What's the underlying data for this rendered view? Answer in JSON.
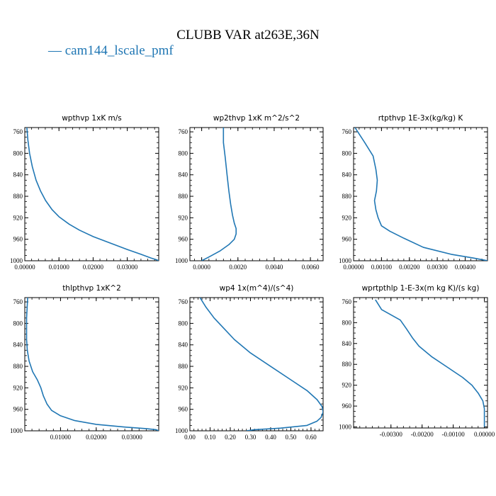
{
  "figure": {
    "title": "CLUBB VAR at263E,36N",
    "legend": "— cam144_lscale_pmf",
    "line_color": "#2077b4"
  },
  "chart_data": [
    {
      "type": "line",
      "title": "wpthvp   1xK m/s",
      "xlim": [
        0,
        0.0392
      ],
      "ylim": [
        1000,
        752
      ],
      "x_ticks": [
        0.0,
        0.01,
        0.02,
        0.03
      ],
      "x_ticklabels": [
        "0.00000",
        "0.01000",
        "0.02000",
        "0.03000"
      ],
      "y_ticks": [
        760,
        800,
        840,
        880,
        920,
        960,
        1000
      ],
      "y_ticklabels": [
        "760",
        "800",
        "840",
        "880",
        "920",
        "960",
        "1000"
      ],
      "series": [
        {
          "x": [
            0.0006,
            0.0009,
            0.0014,
            0.0022,
            0.0033,
            0.0046,
            0.0061,
            0.008,
            0.01,
            0.013,
            0.016,
            0.02,
            0.025,
            0.03,
            0.034,
            0.037,
            0.0385,
            0.0392
          ],
          "y": [
            752,
            775,
            800,
            825,
            850,
            870,
            888,
            905,
            918,
            932,
            943,
            955,
            967,
            979,
            988,
            995,
            998,
            1000
          ]
        }
      ]
    },
    {
      "type": "line",
      "title": "wp2thvp   1xK m^2/s^2",
      "xlim": [
        -0.00065,
        0.0067
      ],
      "ylim": [
        1000,
        752
      ],
      "x_ticks": [
        0.0,
        0.002,
        0.004,
        0.006
      ],
      "x_ticklabels": [
        "0.0000",
        "0.0020",
        "0.0040",
        "0.0060"
      ],
      "y_ticks": [
        760,
        800,
        840,
        880,
        920,
        960,
        1000
      ],
      "y_ticklabels": [
        "760",
        "800",
        "840",
        "880",
        "920",
        "960",
        "1000"
      ],
      "series": [
        {
          "x": [
            0.0012,
            0.0012,
            0.0013,
            0.0014,
            0.0015,
            0.0016,
            0.0017,
            0.0018,
            0.0019,
            0.0019,
            0.0018,
            0.0015,
            0.001,
            0.0004,
            0.0
          ],
          "y": [
            752,
            780,
            808,
            840,
            870,
            895,
            915,
            930,
            940,
            950,
            960,
            970,
            982,
            993,
            1000
          ]
        }
      ]
    },
    {
      "type": "line",
      "title": "rtpthvp   1E-3x(kg/kg) K",
      "xlim": [
        0,
        0.0048
      ],
      "ylim": [
        1000,
        752
      ],
      "x_ticks": [
        0.0,
        0.001,
        0.002,
        0.003,
        0.004
      ],
      "x_ticklabels": [
        "0.00000",
        "0.00100",
        "0.00200",
        "0.00300",
        "0.00400"
      ],
      "y_ticks": [
        760,
        800,
        840,
        880,
        920,
        960,
        1000
      ],
      "y_ticklabels": [
        "760",
        "800",
        "840",
        "880",
        "920",
        "960",
        "1000"
      ],
      "series": [
        {
          "x": [
            5e-05,
            0.0004,
            0.0007,
            0.0008,
            0.00085,
            0.00082,
            0.00075,
            0.0008,
            0.00088,
            0.001,
            0.0013,
            0.0018,
            0.0025,
            0.0035,
            0.0043,
            0.0048
          ],
          "y": [
            752,
            780,
            805,
            830,
            850,
            870,
            888,
            905,
            920,
            935,
            945,
            958,
            975,
            988,
            995,
            1000
          ]
        }
      ]
    },
    {
      "type": "line",
      "title": "thlpthvp   1xK^2",
      "xlim": [
        0,
        0.0375
      ],
      "ylim": [
        1000,
        752
      ],
      "x_ticks": [
        0.01,
        0.02,
        0.03
      ],
      "x_ticklabels": [
        "0.01000",
        "0.02000",
        "0.03000"
      ],
      "y_ticks": [
        760,
        800,
        840,
        880,
        920,
        960,
        1000
      ],
      "y_ticklabels": [
        "760",
        "800",
        "840",
        "880",
        "920",
        "960",
        "1000"
      ],
      "series": [
        {
          "x": [
            0.0008,
            0.0005,
            0.0005,
            0.0007,
            0.0012,
            0.0022,
            0.0035,
            0.0045,
            0.0052,
            0.0062,
            0.0075,
            0.01,
            0.014,
            0.02,
            0.028,
            0.034,
            0.0368,
            0.0375
          ],
          "y": [
            752,
            790,
            830,
            850,
            870,
            890,
            905,
            920,
            935,
            950,
            962,
            972,
            981,
            988,
            993,
            996,
            998,
            1000
          ]
        }
      ]
    },
    {
      "type": "line",
      "title": "wp4   1x(m^4)/(s^4)",
      "xlim": [
        0,
        0.66
      ],
      "ylim": [
        1000,
        752
      ],
      "x_ticks": [
        0.0,
        0.1,
        0.2,
        0.3,
        0.4,
        0.5,
        0.6
      ],
      "x_ticklabels": [
        "0.00",
        "0.10",
        "0.20",
        "0.30",
        "0.40",
        "0.50",
        "0.60"
      ],
      "y_ticks": [
        760,
        800,
        840,
        880,
        920,
        960,
        1000
      ],
      "y_ticklabels": [
        "760",
        "800",
        "840",
        "880",
        "920",
        "960",
        "1000"
      ],
      "series": [
        {
          "x": [
            0.05,
            0.08,
            0.12,
            0.17,
            0.22,
            0.3,
            0.4,
            0.5,
            0.58,
            0.63,
            0.655,
            0.66,
            0.65,
            0.63,
            0.58,
            0.45,
            0.32,
            0.28
          ],
          "y": [
            752,
            770,
            790,
            810,
            830,
            855,
            880,
            905,
            925,
            942,
            955,
            965,
            975,
            982,
            990,
            995,
            998,
            1000
          ]
        }
      ]
    },
    {
      "type": "line",
      "title": "wprtpthlp   1-E-3x(m kg K)/(s kg)",
      "xlim": [
        -0.0042,
        0.0001
      ],
      "ylim": [
        1002,
        752
      ],
      "x_ticks": [
        -0.003,
        -0.002,
        -0.001,
        0.0
      ],
      "x_ticklabels": [
        "-0.00300",
        "-0.00200",
        "-0.00100",
        "0.00000"
      ],
      "y_ticks": [
        760,
        800,
        840,
        880,
        920,
        960,
        1000
      ],
      "y_ticklabels": [
        "760",
        "800",
        "840",
        "880",
        "920",
        "960",
        "1000"
      ],
      "series": [
        {
          "x": [
            -0.0035,
            -0.0033,
            -0.0027,
            -0.0025,
            -0.0023,
            -0.0021,
            -0.0017,
            -0.0012,
            -0.0007,
            -0.0004,
            -0.0002,
            -5e-05,
            0.0,
            0.0
          ],
          "y": [
            756,
            775,
            795,
            812,
            830,
            845,
            865,
            885,
            905,
            920,
            935,
            950,
            965,
            1000
          ]
        }
      ]
    }
  ]
}
